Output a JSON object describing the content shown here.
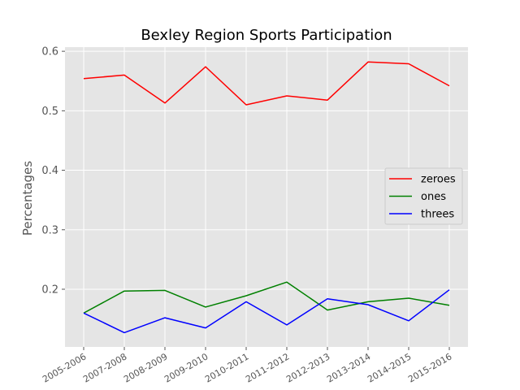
{
  "chart_data": {
    "type": "line",
    "title": "Bexley Region Sports Participation",
    "xlabel": "",
    "ylabel": "Percentages",
    "categories": [
      "2005-2006",
      "2007-2008",
      "2008-2009",
      "2009-2010",
      "2010-2011",
      "2011-2012",
      "2012-2013",
      "2013-2014",
      "2014-2015",
      "2015-2016"
    ],
    "ylim": [
      0.103,
      0.607
    ],
    "yticks": [
      "0.2",
      "0.3",
      "0.4",
      "0.5",
      "0.6"
    ],
    "ytick_values": [
      0.2,
      0.3,
      0.4,
      0.5,
      0.6
    ],
    "grid": true,
    "legend_position": "center-right",
    "series": [
      {
        "name": "zeroes",
        "color": "#ff0000",
        "values": [
          0.554,
          0.56,
          0.513,
          0.574,
          0.51,
          0.525,
          0.518,
          0.582,
          0.579,
          0.542
        ]
      },
      {
        "name": "ones",
        "color": "#008000",
        "values": [
          0.16,
          0.197,
          0.198,
          0.17,
          0.189,
          0.212,
          0.165,
          0.179,
          0.185,
          0.173
        ]
      },
      {
        "name": "threes",
        "color": "#0000ff",
        "values": [
          0.16,
          0.127,
          0.152,
          0.135,
          0.179,
          0.14,
          0.184,
          0.174,
          0.147,
          0.199
        ]
      }
    ]
  }
}
